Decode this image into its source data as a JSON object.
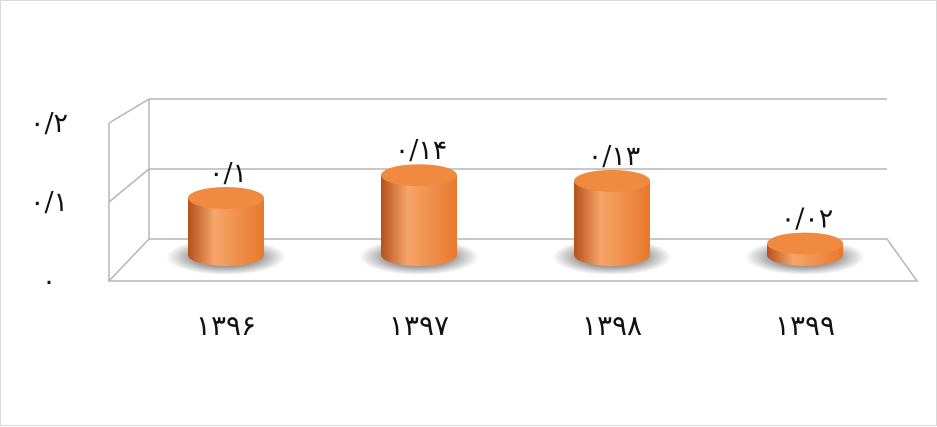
{
  "chart_data": {
    "type": "bar",
    "style": "3d-cylinder",
    "categories": [
      "۱۳۹۶",
      "۱۳۹۷",
      "۱۳۹۸",
      "۱۳۹۹"
    ],
    "values": [
      0.1,
      0.14,
      0.13,
      0.02
    ],
    "value_labels": [
      "۰/۱",
      "۰/۱۴",
      "۰/۱۳",
      "۰/۰۲"
    ],
    "y_ticks": [
      0,
      0.1,
      0.2
    ],
    "y_tick_labels": [
      "۰",
      "۰/۱",
      "۰/۲"
    ],
    "ylim": [
      0,
      0.2
    ],
    "grid": true,
    "legend": "none",
    "colors": {
      "bar": "#E8782A",
      "bar_dark": "#B5501A",
      "bar_light": "#F6A56A",
      "top": "#F08A40",
      "grid": "#b5b5b5",
      "shadow": "#000000"
    }
  }
}
